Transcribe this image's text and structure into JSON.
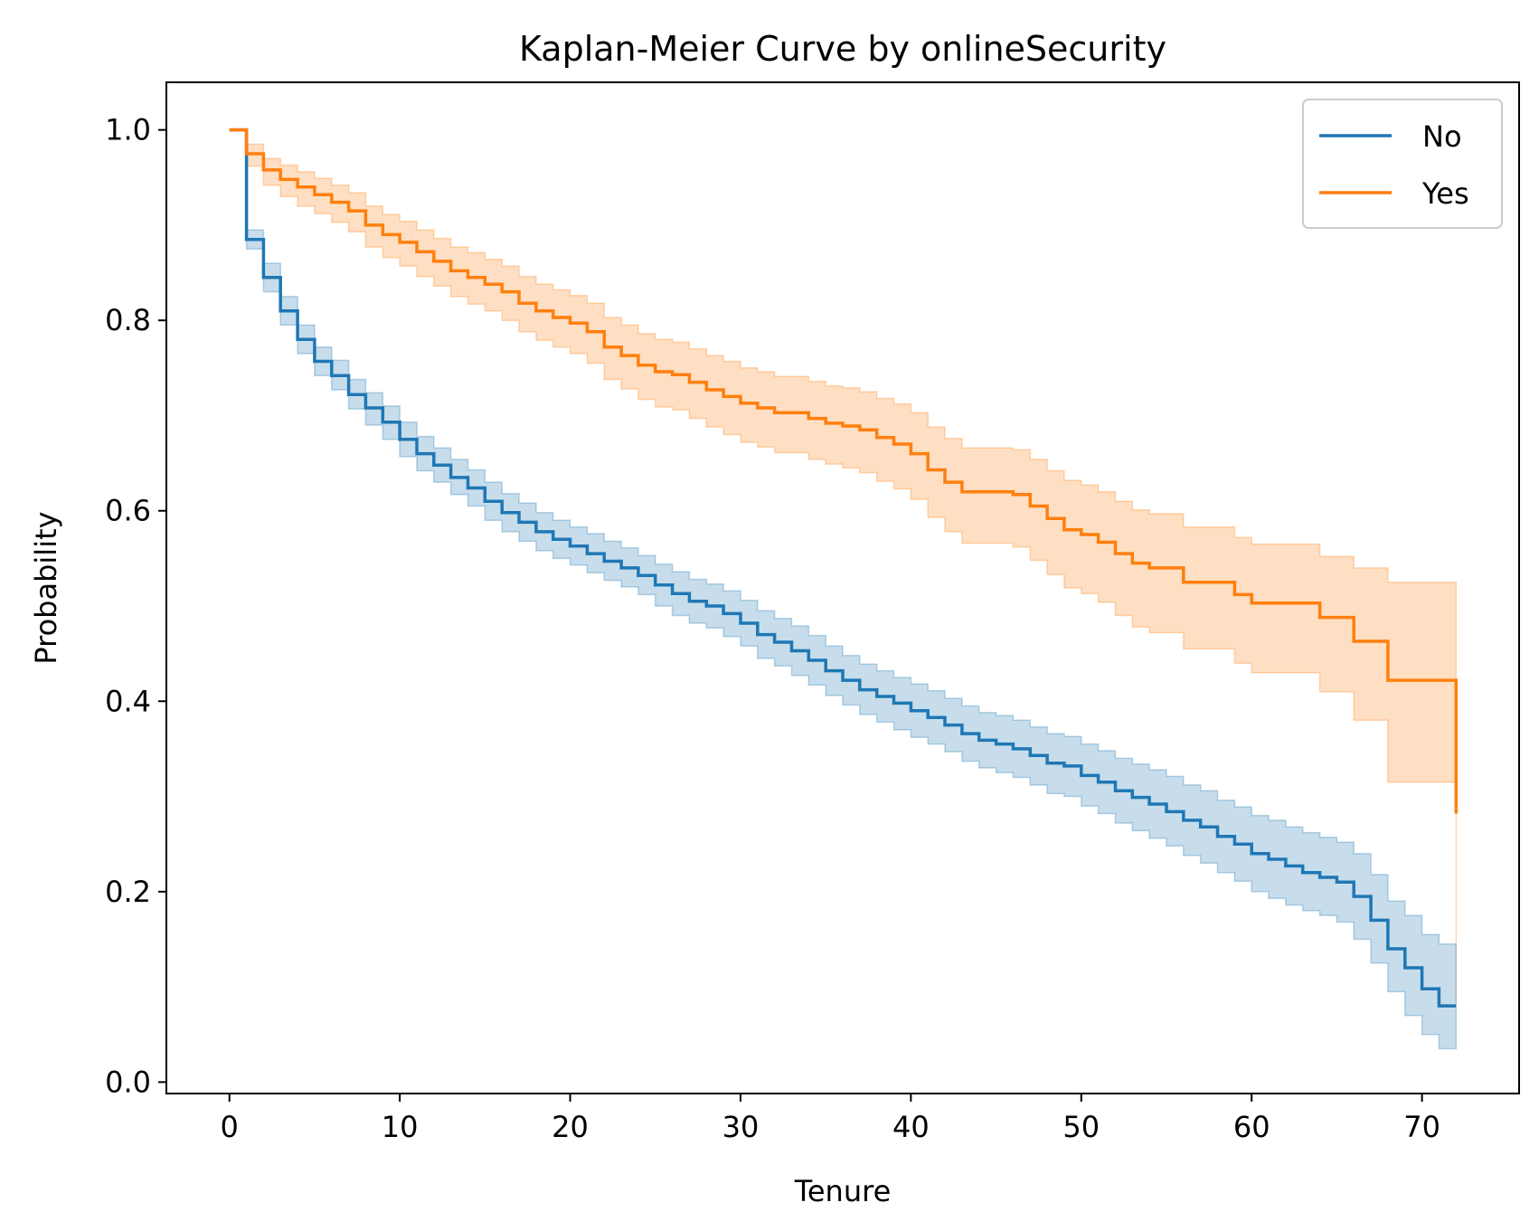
{
  "chart_data": {
    "type": "line",
    "title": "Kaplan-Meier Curve by onlineSecurity",
    "xlabel": "Tenure",
    "ylabel": "Probability",
    "xlim": [
      -3.7,
      75.7
    ],
    "ylim": [
      -0.012,
      1.05
    ],
    "xticks": [
      0,
      10,
      20,
      30,
      40,
      50,
      60,
      70
    ],
    "xtick_labels": [
      "0",
      "10",
      "20",
      "30",
      "40",
      "50",
      "60",
      "70"
    ],
    "yticks": [
      0.0,
      0.2,
      0.4,
      0.6,
      0.8,
      1.0
    ],
    "ytick_labels": [
      "0.0",
      "0.2",
      "0.4",
      "0.6",
      "0.8",
      "1.0"
    ],
    "grid": false,
    "legend_position": "top-right",
    "step": "post",
    "series": [
      {
        "name": "No",
        "color": "#1f77b4",
        "band_color": "#a6c8e2",
        "x": [
          0,
          1,
          2,
          3,
          4,
          5,
          6,
          7,
          8,
          9,
          10,
          11,
          12,
          13,
          14,
          15,
          16,
          17,
          18,
          19,
          20,
          21,
          22,
          23,
          24,
          25,
          26,
          27,
          28,
          29,
          30,
          31,
          32,
          33,
          34,
          35,
          36,
          37,
          38,
          39,
          40,
          41,
          42,
          43,
          44,
          45,
          46,
          47,
          48,
          49,
          50,
          51,
          52,
          53,
          54,
          55,
          56,
          57,
          58,
          59,
          60,
          61,
          62,
          63,
          64,
          65,
          66,
          67,
          68,
          69,
          70,
          71,
          72
        ],
        "y": [
          1.0,
          0.885,
          0.845,
          0.81,
          0.78,
          0.757,
          0.742,
          0.722,
          0.708,
          0.693,
          0.675,
          0.66,
          0.648,
          0.635,
          0.624,
          0.61,
          0.598,
          0.588,
          0.578,
          0.57,
          0.563,
          0.555,
          0.547,
          0.54,
          0.532,
          0.522,
          0.513,
          0.505,
          0.5,
          0.492,
          0.482,
          0.47,
          0.462,
          0.453,
          0.443,
          0.432,
          0.422,
          0.412,
          0.405,
          0.398,
          0.39,
          0.383,
          0.375,
          0.366,
          0.359,
          0.355,
          0.35,
          0.343,
          0.335,
          0.332,
          0.322,
          0.315,
          0.306,
          0.299,
          0.292,
          0.284,
          0.275,
          0.268,
          0.258,
          0.25,
          0.24,
          0.234,
          0.227,
          0.22,
          0.215,
          0.21,
          0.195,
          0.17,
          0.14,
          0.12,
          0.098,
          0.08,
          0.08
        ],
        "ci_lower": [
          1.0,
          0.875,
          0.83,
          0.795,
          0.765,
          0.742,
          0.727,
          0.707,
          0.69,
          0.675,
          0.657,
          0.642,
          0.63,
          0.617,
          0.605,
          0.59,
          0.578,
          0.568,
          0.558,
          0.55,
          0.543,
          0.535,
          0.527,
          0.52,
          0.512,
          0.5,
          0.49,
          0.482,
          0.477,
          0.468,
          0.458,
          0.445,
          0.437,
          0.427,
          0.417,
          0.406,
          0.396,
          0.386,
          0.378,
          0.37,
          0.362,
          0.355,
          0.347,
          0.337,
          0.33,
          0.325,
          0.32,
          0.312,
          0.303,
          0.3,
          0.29,
          0.282,
          0.272,
          0.264,
          0.256,
          0.248,
          0.238,
          0.23,
          0.22,
          0.211,
          0.2,
          0.193,
          0.186,
          0.18,
          0.175,
          0.168,
          0.15,
          0.125,
          0.095,
          0.07,
          0.05,
          0.035,
          0.035
        ],
        "ci_upper": [
          1.0,
          0.895,
          0.86,
          0.825,
          0.795,
          0.772,
          0.758,
          0.738,
          0.724,
          0.71,
          0.693,
          0.678,
          0.666,
          0.654,
          0.643,
          0.63,
          0.618,
          0.608,
          0.598,
          0.59,
          0.583,
          0.576,
          0.568,
          0.561,
          0.553,
          0.544,
          0.536,
          0.528,
          0.523,
          0.516,
          0.506,
          0.495,
          0.487,
          0.479,
          0.469,
          0.458,
          0.448,
          0.439,
          0.432,
          0.425,
          0.418,
          0.411,
          0.403,
          0.395,
          0.388,
          0.385,
          0.38,
          0.373,
          0.366,
          0.363,
          0.355,
          0.348,
          0.34,
          0.334,
          0.328,
          0.321,
          0.312,
          0.306,
          0.296,
          0.289,
          0.28,
          0.275,
          0.268,
          0.262,
          0.257,
          0.252,
          0.24,
          0.218,
          0.19,
          0.175,
          0.155,
          0.145,
          0.145
        ]
      },
      {
        "name": "Yes",
        "color": "#ff7f0e",
        "band_color": "#fdd3b0",
        "x": [
          0,
          1,
          2,
          3,
          4,
          5,
          6,
          7,
          8,
          9,
          10,
          11,
          12,
          13,
          14,
          15,
          16,
          17,
          18,
          19,
          20,
          21,
          22,
          23,
          24,
          25,
          26,
          27,
          28,
          29,
          30,
          31,
          32,
          33,
          34,
          35,
          36,
          37,
          38,
          39,
          40,
          41,
          42,
          43,
          44,
          45,
          46,
          47,
          48,
          49,
          50,
          51,
          52,
          53,
          54,
          55,
          56,
          57,
          58,
          59,
          60,
          61,
          62,
          63,
          64,
          65,
          66,
          67,
          68,
          69,
          70,
          71,
          72
        ],
        "y": [
          1.0,
          0.975,
          0.958,
          0.948,
          0.94,
          0.932,
          0.924,
          0.915,
          0.9,
          0.89,
          0.882,
          0.872,
          0.862,
          0.852,
          0.845,
          0.838,
          0.83,
          0.818,
          0.81,
          0.803,
          0.797,
          0.788,
          0.772,
          0.763,
          0.753,
          0.746,
          0.743,
          0.735,
          0.727,
          0.72,
          0.713,
          0.708,
          0.703,
          0.703,
          0.697,
          0.692,
          0.689,
          0.685,
          0.677,
          0.67,
          0.66,
          0.643,
          0.63,
          0.62,
          0.62,
          0.62,
          0.617,
          0.605,
          0.592,
          0.58,
          0.575,
          0.567,
          0.555,
          0.545,
          0.54,
          0.54,
          0.525,
          0.525,
          0.525,
          0.512,
          0.503,
          0.503,
          0.503,
          0.503,
          0.488,
          0.488,
          0.463,
          0.463,
          0.422,
          0.422,
          0.422,
          0.422,
          0.282
        ],
        "ci_lower": [
          1.0,
          0.962,
          0.942,
          0.93,
          0.92,
          0.912,
          0.903,
          0.893,
          0.877,
          0.866,
          0.857,
          0.846,
          0.836,
          0.825,
          0.817,
          0.81,
          0.8,
          0.788,
          0.779,
          0.772,
          0.765,
          0.755,
          0.738,
          0.728,
          0.717,
          0.709,
          0.706,
          0.697,
          0.688,
          0.68,
          0.672,
          0.667,
          0.661,
          0.661,
          0.654,
          0.649,
          0.645,
          0.64,
          0.631,
          0.623,
          0.612,
          0.593,
          0.578,
          0.566,
          0.566,
          0.566,
          0.562,
          0.548,
          0.533,
          0.519,
          0.513,
          0.504,
          0.49,
          0.478,
          0.472,
          0.472,
          0.455,
          0.455,
          0.455,
          0.44,
          0.43,
          0.43,
          0.43,
          0.43,
          0.41,
          0.41,
          0.38,
          0.38,
          0.315,
          0.315,
          0.315,
          0.315,
          0.085
        ],
        "ci_upper": [
          1.0,
          0.985,
          0.97,
          0.963,
          0.956,
          0.949,
          0.942,
          0.934,
          0.92,
          0.911,
          0.904,
          0.895,
          0.886,
          0.877,
          0.871,
          0.864,
          0.857,
          0.846,
          0.838,
          0.832,
          0.826,
          0.818,
          0.803,
          0.795,
          0.786,
          0.78,
          0.777,
          0.77,
          0.763,
          0.757,
          0.75,
          0.746,
          0.741,
          0.741,
          0.736,
          0.731,
          0.729,
          0.725,
          0.718,
          0.712,
          0.703,
          0.688,
          0.676,
          0.666,
          0.666,
          0.666,
          0.664,
          0.654,
          0.642,
          0.632,
          0.627,
          0.62,
          0.61,
          0.601,
          0.597,
          0.597,
          0.583,
          0.583,
          0.583,
          0.572,
          0.565,
          0.565,
          0.565,
          0.565,
          0.552,
          0.552,
          0.54,
          0.54,
          0.525,
          0.525,
          0.525,
          0.525,
          0.52
        ]
      }
    ]
  }
}
